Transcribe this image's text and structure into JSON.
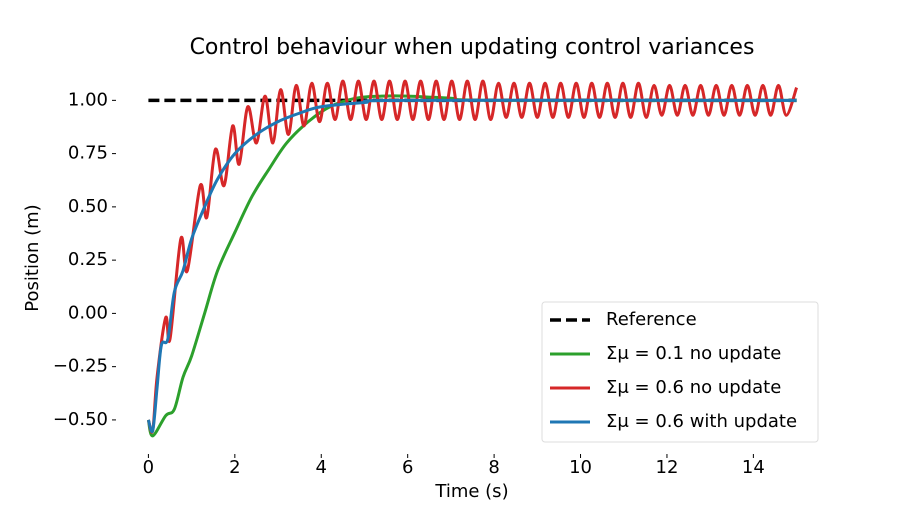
{
  "chart_data": {
    "type": "line",
    "title": "Control behaviour when updating control variances",
    "xlabel": "Time (s)",
    "ylabel": "Position (m)",
    "xlim": [
      -0.75,
      15.75
    ],
    "ylim": [
      -0.66,
      1.18
    ],
    "xticks": [
      0,
      2,
      4,
      6,
      8,
      10,
      12,
      14
    ],
    "yticks": [
      {
        "value": -0.5,
        "label": "−0.50"
      },
      {
        "value": -0.25,
        "label": "−0.25"
      },
      {
        "value": 0,
        "label": "0.00"
      },
      {
        "value": 0.25,
        "label": "0.25"
      },
      {
        "value": 0.5,
        "label": "0.50"
      },
      {
        "value": 0.75,
        "label": "0.75"
      },
      {
        "value": 1,
        "label": "1.00"
      }
    ],
    "legend": "lower right",
    "series": [
      {
        "name": "Reference",
        "color": "#000000",
        "dash": true,
        "x": [
          0,
          15
        ],
        "values": [
          1,
          1
        ]
      },
      {
        "name": "Σμ = 0.1 no update",
        "color": "#2ca02c",
        "x": [
          0,
          0.1,
          0.4,
          0.6,
          0.8,
          1.0,
          1.3,
          1.6,
          2.0,
          2.4,
          2.8,
          3.2,
          3.7,
          4.2,
          4.8,
          5.4,
          6.0,
          7.0,
          8.0,
          15.0
        ],
        "values": [
          -0.5,
          -0.575,
          -0.48,
          -0.45,
          -0.3,
          -0.2,
          0,
          0.2,
          0.38,
          0.55,
          0.68,
          0.8,
          0.9,
          0.97,
          1.01,
          1.02,
          1.02,
          1.01,
          1.0,
          1.0
        ]
      },
      {
        "name": "Σμ = 0.6 no update",
        "color": "#d62728",
        "x": [
          0,
          0.1,
          0.2,
          0.4,
          0.5,
          0.75,
          0.9,
          1.2,
          1.35,
          1.55,
          1.75,
          1.95,
          2.1,
          2.3,
          2.5,
          2.7,
          2.88,
          3.06,
          3.24,
          3.42,
          3.6,
          3.78,
          3.96,
          4.14,
          4.32,
          4.5,
          4.68,
          4.86,
          5.04,
          5.22,
          5.4,
          5.58,
          5.76,
          5.94,
          6.12,
          6.3,
          6.48,
          6.66,
          6.84,
          7.02,
          7.2,
          7.38,
          7.56,
          7.74,
          7.92,
          8.1,
          8.28,
          8.46,
          8.64,
          8.82,
          9.0,
          9.18,
          9.36,
          9.54,
          9.72,
          9.9,
          10.08,
          10.26,
          10.44,
          10.62,
          10.8,
          10.98,
          11.16,
          11.34,
          11.52,
          11.7,
          11.88,
          12.06,
          12.24,
          12.42,
          12.6,
          12.78,
          12.96,
          13.14,
          13.32,
          13.5,
          13.68,
          13.86,
          14.04,
          14.22,
          14.4,
          14.58,
          14.76,
          15.0
        ],
        "values": [
          -0.5,
          -0.55,
          -0.3,
          -0.02,
          -0.12,
          0.35,
          0.2,
          0.6,
          0.45,
          0.77,
          0.6,
          0.88,
          0.7,
          0.97,
          0.8,
          1.02,
          0.8,
          1.05,
          0.84,
          1.07,
          0.88,
          1.08,
          0.9,
          1.08,
          0.91,
          1.09,
          0.91,
          1.09,
          0.91,
          1.09,
          0.91,
          1.09,
          0.91,
          1.09,
          0.91,
          1.09,
          0.91,
          1.09,
          0.91,
          1.09,
          0.91,
          1.09,
          0.91,
          1.09,
          0.91,
          1.08,
          0.92,
          1.08,
          0.92,
          1.08,
          0.92,
          1.08,
          0.92,
          1.08,
          0.92,
          1.08,
          0.92,
          1.08,
          0.92,
          1.08,
          0.92,
          1.08,
          0.92,
          1.08,
          0.92,
          1.07,
          0.93,
          1.07,
          0.93,
          1.07,
          0.93,
          1.07,
          0.93,
          1.07,
          0.93,
          1.07,
          0.93,
          1.07,
          0.93,
          1.07,
          0.93,
          1.07,
          0.93,
          1.06
        ]
      },
      {
        "name": "Σμ = 0.6 with update",
        "color": "#1f77b4",
        "x": [
          0,
          0.1,
          0.2,
          0.3,
          0.45,
          0.6,
          0.8,
          1.0,
          1.3,
          1.6,
          2.0,
          2.5,
          3.0,
          3.5,
          4.0,
          5.0,
          6.0,
          15.0
        ],
        "values": [
          -0.5,
          -0.55,
          -0.35,
          -0.15,
          -0.12,
          0.1,
          0.2,
          0.35,
          0.5,
          0.63,
          0.75,
          0.84,
          0.9,
          0.94,
          0.97,
          0.99,
          1.0,
          1.0
        ]
      }
    ]
  }
}
